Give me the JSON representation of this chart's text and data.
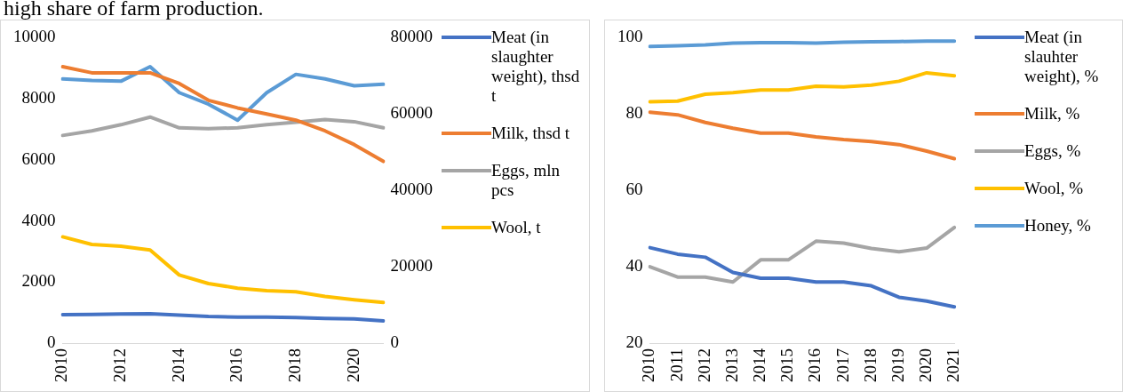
{
  "chart_data": [
    {
      "type": "line",
      "annotations": [
        "high share of farm production."
      ],
      "categories": [
        "2010",
        null,
        "2012",
        null,
        "2014",
        null,
        "2016",
        null,
        "2018",
        null,
        "2020",
        null
      ],
      "series": [
        {
          "name": "Meat (in slaughter weight), thsd t",
          "color": "#4472c4",
          "values": [
            930,
            940,
            950,
            960,
            920,
            870,
            850,
            850,
            840,
            810,
            790,
            730
          ]
        },
        {
          "name": "Milk, thsd t",
          "color": "#ed7d31",
          "values": [
            9050,
            8850,
            8850,
            8850,
            8500,
            7950,
            7700,
            7500,
            7300,
            6950,
            6500,
            5950
          ]
        },
        {
          "name": "Eggs, mln pcs",
          "color": "#a5a5a5",
          "values": [
            6800,
            6950,
            7150,
            7400,
            7050,
            7020,
            7050,
            7150,
            7230,
            7320,
            7250,
            7050
          ]
        },
        {
          "name": "Wool, t",
          "color": "#ffc000",
          "values": [
            3480,
            3230,
            3170,
            3050,
            2230,
            1950,
            1800,
            1720,
            1680,
            1530,
            1420,
            1330
          ]
        },
        {
          "color": "#5b9bd5",
          "axis": "y2",
          "values": [
            69200,
            68800,
            68600,
            72400,
            65600,
            62600,
            58400,
            65600,
            70400,
            69200,
            67400,
            67800
          ]
        }
      ],
      "ylim": [
        0,
        10000
      ],
      "yticks": [
        0,
        2000,
        4000,
        6000,
        8000,
        10000
      ],
      "y2lim": [
        0,
        80000
      ],
      "y2ticks": [
        0,
        20000,
        40000,
        60000,
        80000
      ],
      "grid": false,
      "legend": "right"
    },
    {
      "type": "line",
      "categories": [
        "2010",
        "2011",
        "2012",
        "2013",
        "2014",
        "2015",
        "2016",
        "2017",
        "2018",
        "2019",
        "2020",
        "2021"
      ],
      "series": [
        {
          "name": "Meat (in slauhter weight), %",
          "color": "#4472c4",
          "values": [
            45,
            43.3,
            42.5,
            38.5,
            37,
            37,
            36,
            36,
            35,
            32,
            31,
            29.5
          ]
        },
        {
          "name": "Milk, %",
          "color": "#ed7d31",
          "values": [
            80.5,
            79.8,
            77.8,
            76.3,
            75,
            75,
            74,
            73.3,
            72.8,
            72,
            70.3,
            68.3
          ]
        },
        {
          "name": "Eggs, %",
          "color": "#a5a5a5",
          "values": [
            40,
            37.3,
            37.3,
            36,
            41.8,
            41.8,
            46.7,
            46.2,
            44.8,
            43.9,
            44.9,
            50.3
          ]
        },
        {
          "name": "Wool, %",
          "color": "#ffc000",
          "values": [
            83.2,
            83.4,
            85.2,
            85.6,
            86.3,
            86.3,
            87.3,
            87.1,
            87.6,
            88.6,
            90.8,
            90
          ]
        },
        {
          "name": "Honey, %",
          "color": "#5b9bd5",
          "values": [
            97.7,
            97.9,
            98.1,
            98.6,
            98.7,
            98.7,
            98.6,
            98.8,
            98.9,
            99,
            99.1,
            99.1
          ]
        }
      ],
      "ylim": [
        20,
        100
      ],
      "yticks": [
        20,
        40,
        60,
        80,
        100
      ],
      "grid": false,
      "legend": "right"
    }
  ]
}
